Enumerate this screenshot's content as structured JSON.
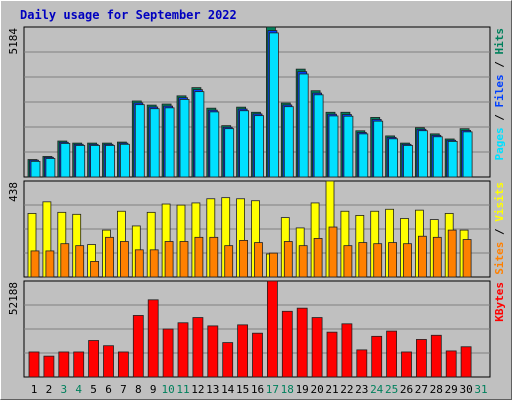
{
  "title": "Daily usage for September 2022",
  "chart_data": [
    {
      "type": "bar",
      "ylim": [
        0,
        5184
      ],
      "yticks": [
        5184
      ],
      "grid_divisions": 6,
      "legend_separator": " / ",
      "series": [
        {
          "name": "Hits",
          "color": "#00805c",
          "values": [
            604,
            710,
            1243,
            1172,
            1172,
            1172,
            1207,
            2627,
            2485,
            2521,
            2805,
            3089,
            2379,
            1775,
            2414,
            2237,
            5184,
            2556,
            3728,
            2982,
            2237,
            2237,
            1598,
            2059,
            1420,
            1172,
            1704,
            1491,
            1314,
            1669,
            null
          ]
        },
        {
          "name": "Files",
          "color": "#0040ff",
          "values": [
            580,
            680,
            1200,
            1130,
            1130,
            1130,
            1170,
            2560,
            2420,
            2450,
            2740,
            3020,
            2310,
            1720,
            2350,
            2180,
            5060,
            2490,
            3640,
            2900,
            2170,
            2160,
            1540,
            1990,
            1370,
            1130,
            1650,
            1440,
            1270,
            1610,
            null
          ]
        },
        {
          "name": "Pages",
          "color": "#00e0ff",
          "values": [
            540,
            640,
            1160,
            1090,
            1090,
            1090,
            1130,
            2500,
            2360,
            2390,
            2680,
            2950,
            2250,
            1670,
            2290,
            2120,
            4980,
            2430,
            3560,
            2840,
            2110,
            2100,
            1490,
            1930,
            1320,
            1090,
            1600,
            1390,
            1230,
            1560,
            null
          ]
        }
      ]
    },
    {
      "type": "bar",
      "ylim": [
        0,
        438
      ],
      "yticks": [
        438
      ],
      "grid_divisions": 4,
      "legend_separator": " / ",
      "series": [
        {
          "name": "Visits",
          "color": "#ffff00",
          "values": [
            290,
            343,
            295,
            286,
            148,
            214,
            300,
            233,
            295,
            333,
            328,
            338,
            357,
            362,
            357,
            348,
            105,
            271,
            224,
            338,
            438,
            300,
            281,
            300,
            309,
            267,
            305,
            262,
            290,
            214,
            null
          ]
        },
        {
          "name": "Sites",
          "color": "#ff8000",
          "values": [
            119,
            119,
            152,
            143,
            71,
            181,
            162,
            124,
            124,
            162,
            162,
            181,
            181,
            143,
            167,
            157,
            109,
            162,
            143,
            176,
            228,
            143,
            157,
            152,
            157,
            152,
            186,
            181,
            214,
            171,
            null
          ]
        }
      ]
    },
    {
      "type": "bar",
      "ylim": [
        0,
        52188
      ],
      "yticks": [
        52188
      ],
      "grid_divisions": 4,
      "categories": [
        "1",
        "2",
        "3",
        "4",
        "5",
        "6",
        "7",
        "8",
        "9",
        "10",
        "11",
        "12",
        "13",
        "14",
        "15",
        "16",
        "17",
        "18",
        "19",
        "20",
        "21",
        "22",
        "23",
        "24",
        "25",
        "26",
        "27",
        "28",
        "29",
        "30",
        "31"
      ],
      "label_color": "#000000",
      "highlight_color": "#00805c",
      "highlight": [
        2,
        3,
        9,
        10,
        16,
        17,
        23,
        24,
        30
      ],
      "series": [
        {
          "name": "KBytes",
          "color": "#ff0000",
          "values": [
            13608,
            11340,
            13608,
            13608,
            19845,
            17010,
            13608,
            33453,
            41958,
            26082,
            29484,
            32319,
            27783,
            18711,
            28350,
            23814,
            52188,
            35721,
            37422,
            32319,
            24381,
            28917,
            14742,
            22113,
            24948,
            13608,
            20412,
            22680,
            14175,
            16443,
            null
          ]
        }
      ]
    }
  ]
}
